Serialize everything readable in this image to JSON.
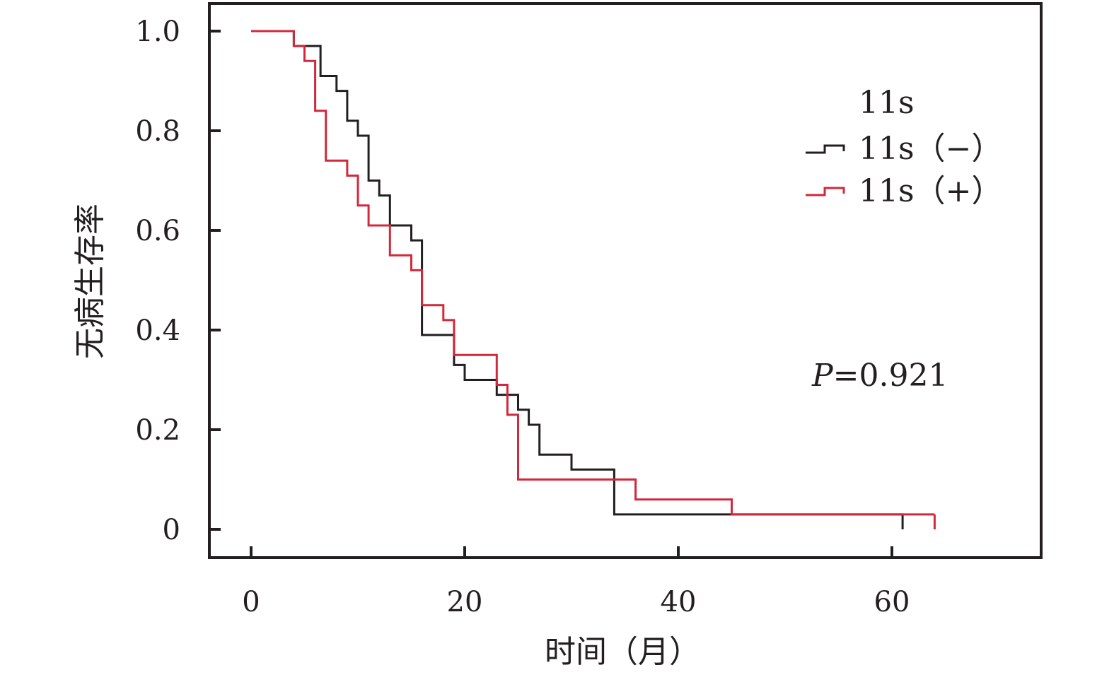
{
  "chart_data": {
    "type": "line",
    "step": true,
    "title": "",
    "xlabel": "时间（月）",
    "ylabel": "无病生存率",
    "xlim": [
      0,
      74
    ],
    "ylim": [
      0,
      1.0
    ],
    "x_ticks": [
      0,
      20,
      40,
      60
    ],
    "x_tick_labels": [
      "0",
      "20",
      "40",
      "60"
    ],
    "y_ticks": [
      0,
      0.2,
      0.4,
      0.6,
      0.8,
      1.0
    ],
    "y_tick_labels": [
      "0",
      "0.2",
      "0.4",
      "0.6",
      "0.8",
      "1.0"
    ],
    "grid": false,
    "legend": {
      "title": "11s",
      "placement": "top-right"
    },
    "annotation": {
      "p_label": "P",
      "p_value": "=0.921"
    },
    "series": [
      {
        "name": "11s（−）",
        "color": "#231f20",
        "x": [
          0,
          4,
          6,
          6.5,
          8,
          9,
          10,
          11,
          12,
          13,
          15,
          16,
          19,
          20,
          23,
          24,
          25,
          26,
          27,
          30,
          34,
          61
        ],
        "y": [
          1.0,
          0.97,
          0.97,
          0.91,
          0.88,
          0.82,
          0.79,
          0.7,
          0.67,
          0.61,
          0.58,
          0.39,
          0.33,
          0.3,
          0.27,
          0.27,
          0.24,
          0.21,
          0.15,
          0.12,
          0.03,
          0.03
        ],
        "end_x": 61,
        "censor": [
          61
        ]
      },
      {
        "name": "11s（+）",
        "color": "#d2283c",
        "x": [
          0,
          4,
          5,
          6,
          7,
          9,
          10,
          11,
          13,
          15,
          16,
          18,
          19,
          23,
          24,
          25,
          34,
          36,
          45,
          64
        ],
        "y": [
          1.0,
          0.97,
          0.94,
          0.84,
          0.74,
          0.71,
          0.65,
          0.61,
          0.55,
          0.52,
          0.45,
          0.42,
          0.35,
          0.29,
          0.23,
          0.1,
          0.1,
          0.06,
          0.03,
          0.03
        ],
        "end_x": 64,
        "censor": [
          64
        ]
      }
    ]
  }
}
